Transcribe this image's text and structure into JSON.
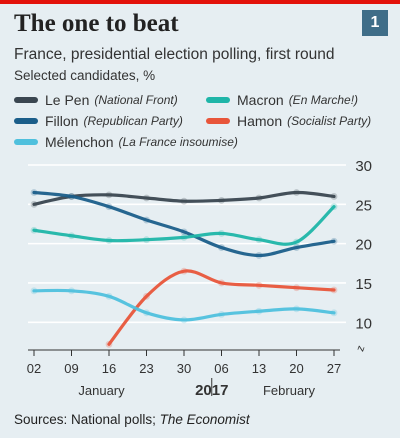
{
  "header": {
    "title": "The one to beat",
    "badge": "1",
    "subtitle": "France, presidential election polling, first round",
    "unit": "Selected candidates, %"
  },
  "legend": [
    {
      "name": "Le Pen",
      "party": "(National Front)",
      "color": "#3a4650"
    },
    {
      "name": "Macron",
      "party": "(En Marche!)",
      "color": "#1fb5a8"
    },
    {
      "name": "Fillon",
      "party": "(Republican Party)",
      "color": "#1b5e8a"
    },
    {
      "name": "Hamon",
      "party": "(Socialist Party)",
      "color": "#e8553a"
    },
    {
      "name": "Mélenchon",
      "party": "(La France insoumise)",
      "color": "#4fc0dd"
    }
  ],
  "source": {
    "text": "Sources: National polls; ",
    "italic": "The Economist"
  },
  "chart_data": {
    "type": "line",
    "x_tick_labels": [
      "02",
      "09",
      "16",
      "23",
      "30",
      "06",
      "13",
      "20",
      "27"
    ],
    "month_labels": [
      "January",
      "2017",
      "February"
    ],
    "y_tick_labels": [
      "10",
      "15",
      "20",
      "25",
      "30"
    ],
    "ylim": [
      8,
      30
    ],
    "x": [
      "2017-01-02",
      "2017-01-09",
      "2017-01-16",
      "2017-01-23",
      "2017-01-30",
      "2017-02-06",
      "2017-02-13",
      "2017-02-20",
      "2017-02-27"
    ],
    "series": [
      {
        "name": "Le Pen",
        "color": "#3a4650",
        "values": [
          25,
          26,
          26.2,
          25.8,
          25.4,
          25.5,
          25.8,
          26.5,
          26
        ]
      },
      {
        "name": "Fillon",
        "color": "#1b5e8a",
        "values": [
          26.5,
          26,
          24.7,
          23,
          21.5,
          19.5,
          18.5,
          19.5,
          20.3
        ]
      },
      {
        "name": "Macron",
        "color": "#1fb5a8",
        "values": [
          21.7,
          21,
          20.4,
          20.5,
          20.8,
          21.3,
          20.5,
          20.2,
          24.7
        ]
      },
      {
        "name": "Hamon",
        "color": "#e8553a",
        "values": [
          null,
          null,
          7.2,
          13.3,
          16.5,
          15,
          14.7,
          14.4,
          14.1
        ]
      },
      {
        "name": "Mélenchon",
        "color": "#4fc0dd",
        "values": [
          14,
          14,
          13.3,
          11.2,
          10.3,
          11,
          11.4,
          11.7,
          11.2
        ]
      }
    ]
  }
}
